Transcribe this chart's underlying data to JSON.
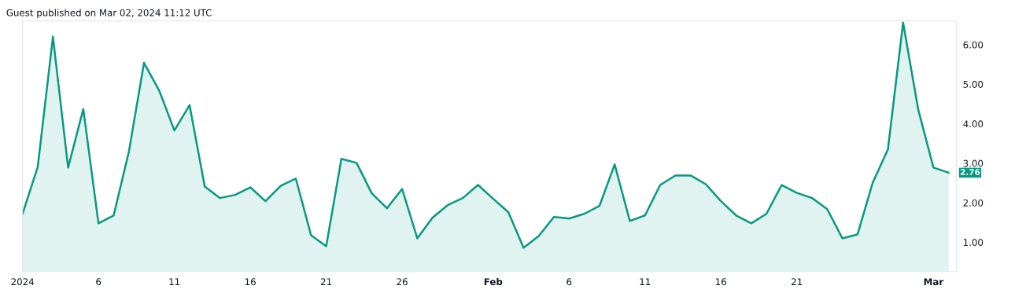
{
  "chart_data": {
    "type": "area",
    "title": "Guest published on Mar 02, 2024 11:12 UTC",
    "x": [
      "2024-01-01",
      "2024-01-02",
      "2024-01-03",
      "2024-01-04",
      "2024-01-05",
      "2024-01-06",
      "2024-01-07",
      "2024-01-08",
      "2024-01-09",
      "2024-01-10",
      "2024-01-11",
      "2024-01-12",
      "2024-01-13",
      "2024-01-14",
      "2024-01-15",
      "2024-01-16",
      "2024-01-17",
      "2024-01-18",
      "2024-01-19",
      "2024-01-20",
      "2024-01-21",
      "2024-01-22",
      "2024-01-23",
      "2024-01-24",
      "2024-01-25",
      "2024-01-26",
      "2024-01-27",
      "2024-01-28",
      "2024-01-29",
      "2024-01-30",
      "2024-01-31",
      "2024-02-01",
      "2024-02-02",
      "2024-02-03",
      "2024-02-04",
      "2024-02-05",
      "2024-02-06",
      "2024-02-07",
      "2024-02-08",
      "2024-02-09",
      "2024-02-10",
      "2024-02-11",
      "2024-02-12",
      "2024-02-13",
      "2024-02-14",
      "2024-02-15",
      "2024-02-16",
      "2024-02-17",
      "2024-02-18",
      "2024-02-19",
      "2024-02-20",
      "2024-02-21",
      "2024-02-22",
      "2024-02-23",
      "2024-02-24",
      "2024-02-25",
      "2024-02-26",
      "2024-02-27",
      "2024-02-28",
      "2024-02-29",
      "2024-03-01",
      "2024-03-02"
    ],
    "series": [
      {
        "color": "#089981",
        "values": [
          1.72,
          2.91,
          6.2,
          2.89,
          4.37,
          1.48,
          1.68,
          3.29,
          5.54,
          4.84,
          3.83,
          4.47,
          2.41,
          2.12,
          2.2,
          2.39,
          2.04,
          2.43,
          2.61,
          1.18,
          0.9,
          3.11,
          3.01,
          2.24,
          1.86,
          2.35,
          1.1,
          1.62,
          1.94,
          2.12,
          2.45,
          2.1,
          1.76,
          0.86,
          1.16,
          1.64,
          1.6,
          1.72,
          1.92,
          2.97,
          1.54,
          1.68,
          2.45,
          2.69,
          2.69,
          2.47,
          2.04,
          1.68,
          1.48,
          1.72,
          2.45,
          2.25,
          2.12,
          1.84,
          1.1,
          1.2,
          2.51,
          3.35,
          6.56,
          4.35,
          2.89,
          2.76
        ]
      }
    ],
    "xlim": [
      "2024-01-01",
      "2024-03-02T12:00"
    ],
    "xticks": [
      {
        "value": "2024-01-01",
        "label": "2024"
      },
      {
        "value": "2024-01-06",
        "label": "6"
      },
      {
        "value": "2024-01-11",
        "label": "11"
      },
      {
        "value": "2024-01-16",
        "label": "16"
      },
      {
        "value": "2024-01-21",
        "label": "21"
      },
      {
        "value": "2024-01-26",
        "label": "26"
      },
      {
        "value": "2024-02-01",
        "label": "Feb"
      },
      {
        "value": "2024-02-06",
        "label": "6"
      },
      {
        "value": "2024-02-11",
        "label": "11"
      },
      {
        "value": "2024-02-16",
        "label": "16"
      },
      {
        "value": "2024-02-21",
        "label": "21"
      },
      {
        "value": "2024-03-01",
        "label": "Mar"
      }
    ],
    "ylim": [
      0.26,
      6.6
    ],
    "yticks": [
      {
        "value": 1,
        "label": "1.00"
      },
      {
        "value": 2,
        "label": "2.00"
      },
      {
        "value": 3,
        "label": "3.00"
      },
      {
        "value": 4,
        "label": "4.00"
      },
      {
        "value": 5,
        "label": "5.00"
      },
      {
        "value": 6,
        "label": "6.00"
      }
    ],
    "annotations": [
      {
        "text": "2.76",
        "x": "2024-03-02",
        "y": 2.76
      }
    ],
    "grid": false,
    "legend": false,
    "marker": "none",
    "line_style": "solid"
  }
}
